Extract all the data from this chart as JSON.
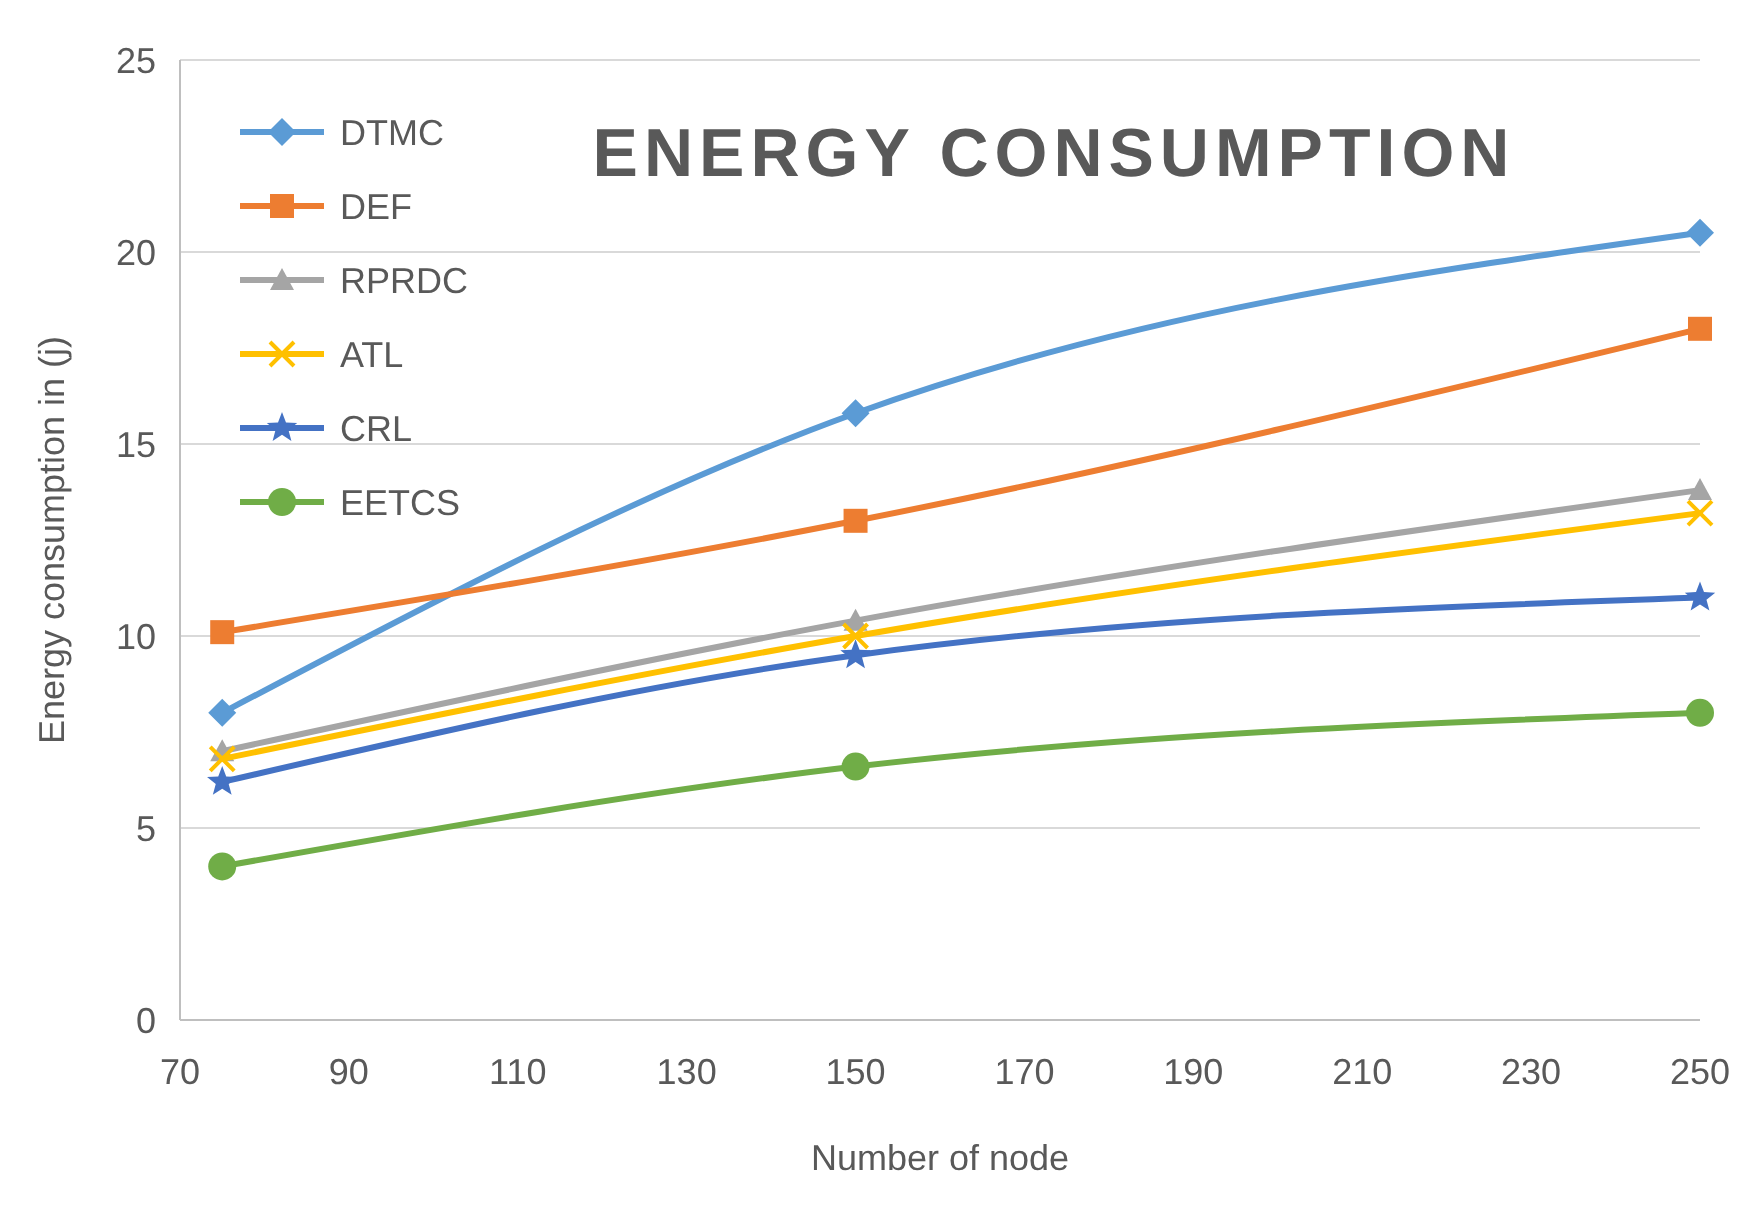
{
  "chart_data": {
    "type": "line",
    "title": "ENERGY CONSUMPTION",
    "xlabel": "Number of node",
    "ylabel": "Energy consumption in (j)",
    "x": [
      75,
      150,
      250
    ],
    "xlim": [
      70,
      250
    ],
    "xticks": [
      70,
      90,
      110,
      130,
      150,
      170,
      190,
      210,
      230,
      250
    ],
    "ylim": [
      0,
      25
    ],
    "yticks": [
      0,
      5,
      10,
      15,
      20,
      25
    ],
    "grid": "y",
    "legend": "top left",
    "line_style": "solid",
    "series": [
      {
        "name": "DTMC",
        "color": "#5b9bd5",
        "marker": "diamond",
        "values": [
          8.0,
          15.8,
          20.5
        ]
      },
      {
        "name": "DEF",
        "color": "#ed7d31",
        "marker": "square",
        "values": [
          10.1,
          13.0,
          18.0
        ]
      },
      {
        "name": "RPRDC",
        "color": "#a5a5a5",
        "marker": "triangle",
        "values": [
          7.0,
          10.4,
          13.8
        ]
      },
      {
        "name": "ATL",
        "color": "#ffc000",
        "marker": "cross",
        "values": [
          6.8,
          10.0,
          13.2
        ]
      },
      {
        "name": "CRL",
        "color": "#4472c4",
        "marker": "star",
        "values": [
          6.2,
          9.5,
          11.0
        ]
      },
      {
        "name": "EETCS",
        "color": "#70ad47",
        "marker": "circle",
        "values": [
          4.0,
          6.6,
          8.0
        ]
      }
    ]
  }
}
